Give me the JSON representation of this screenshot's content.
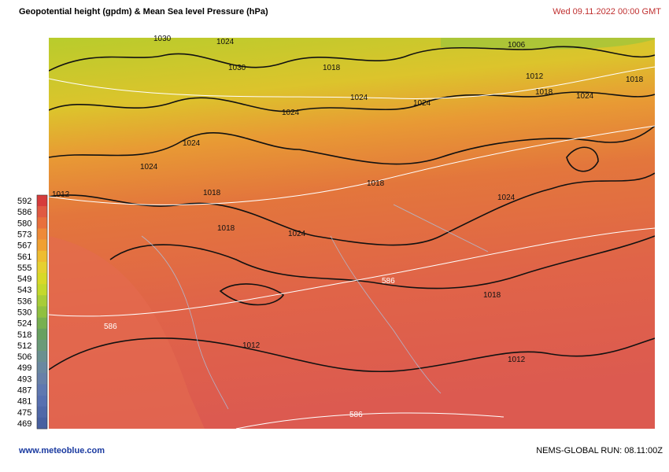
{
  "header": {
    "title": "Geopotential height (gpdm)  & Mean Sea level Pressure (hPa)",
    "date": "Wed 09.11.2022  00:00 GMT"
  },
  "legend": {
    "labels": [
      592,
      586,
      580,
      573,
      567,
      561,
      555,
      549,
      543,
      536,
      530,
      524,
      518,
      512,
      506,
      499,
      493,
      487,
      481,
      475,
      469
    ],
    "colors": [
      "#d63c3c",
      "#e05a42",
      "#e8703c",
      "#ee8a38",
      "#f0a032",
      "#eebc30",
      "#e6d030",
      "#d8d828",
      "#c4d82c",
      "#a8cc38",
      "#90c040",
      "#78b050",
      "#68a060",
      "#6a9a78",
      "#6a9090",
      "#6a88a0",
      "#6880a8",
      "#6078b0",
      "#5870b0",
      "#5068a8",
      "#4860a0"
    ]
  },
  "map": {
    "contour_labels": [
      "1030",
      "1024",
      "1030",
      "1018",
      "1024",
      "1024",
      "1024",
      "1006",
      "1012",
      "1018",
      "1024",
      "1018",
      "1012",
      "1024",
      "1024",
      "1018",
      "1018",
      "1024",
      "1018",
      "1024",
      "586",
      "586",
      "1018",
      "1012",
      "1012",
      "586"
    ]
  },
  "footer": {
    "site": "www.meteoblue.com",
    "run": "NEMS-GLOBAL  RUN: 08.11:00Z"
  }
}
